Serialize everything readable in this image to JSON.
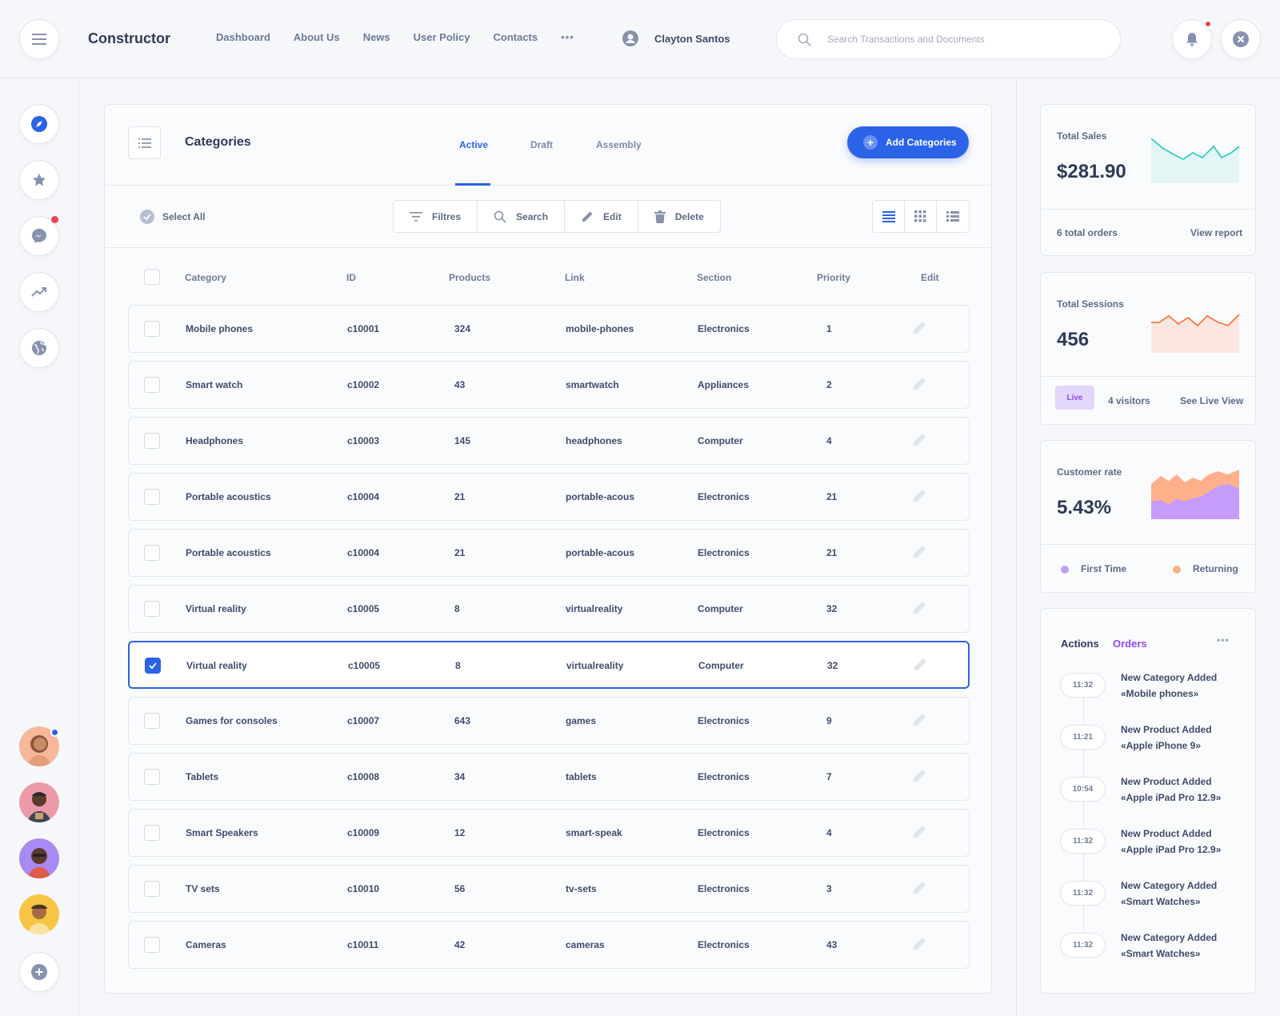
{
  "header": {
    "brand": "Constructor",
    "nav": [
      "Dashboard",
      "About Us",
      "News",
      "User Policy",
      "Contacts"
    ],
    "more": "•••",
    "user_name": "Clayton Santos",
    "search_placeholder": "Search Transactions and Documents"
  },
  "panel": {
    "title": "Categories",
    "tabs": [
      "Active",
      "Draft",
      "Assembly"
    ],
    "active_tab": "Active",
    "add_label": "Add Categories",
    "select_all": "Select All",
    "tools": [
      "Filtres",
      "Search",
      "Edit",
      "Delete"
    ],
    "columns": [
      "Category",
      "ID",
      "Products",
      "Link",
      "Section",
      "Priority",
      "Edit"
    ],
    "rows": [
      {
        "category": "Mobile phones",
        "id": "c10001",
        "products": "324",
        "link": "mobile-phones",
        "section": "Electronics",
        "priority": "1",
        "checked": false
      },
      {
        "category": "Smart watch",
        "id": "c10002",
        "products": "43",
        "link": "smartwatch",
        "section": "Appliances",
        "priority": "2",
        "checked": false
      },
      {
        "category": "Headphones",
        "id": "c10003",
        "products": "145",
        "link": "headphones",
        "section": "Computer",
        "priority": "4",
        "checked": false
      },
      {
        "category": "Portable acoustics",
        "id": "c10004",
        "products": "21",
        "link": "portable-acous",
        "section": "Electronics",
        "priority": "21",
        "checked": false
      },
      {
        "category": "Portable acoustics",
        "id": "c10004",
        "products": "21",
        "link": "portable-acous",
        "section": "Electronics",
        "priority": "21",
        "checked": false
      },
      {
        "category": "Virtual reality",
        "id": "c10005",
        "products": "8",
        "link": "virtualreality",
        "section": "Computer",
        "priority": "32",
        "checked": false
      },
      {
        "category": "Virtual reality",
        "id": "c10005",
        "products": "8",
        "link": "virtualreality",
        "section": "Computer",
        "priority": "32",
        "checked": true
      },
      {
        "category": "Games for consoles",
        "id": "c10007",
        "products": "643",
        "link": "games",
        "section": "Electronics",
        "priority": "9",
        "checked": false
      },
      {
        "category": "Tablets",
        "id": "c10008",
        "products": "34",
        "link": "tablets",
        "section": "Electronics",
        "priority": "7",
        "checked": false
      },
      {
        "category": "Smart Speakers",
        "id": "c10009",
        "products": "12",
        "link": "smart-speak",
        "section": "Electronics",
        "priority": "4",
        "checked": false
      },
      {
        "category": "TV sets",
        "id": "c10010",
        "products": "56",
        "link": "tv-sets",
        "section": "Electronics",
        "priority": "3",
        "checked": false
      },
      {
        "category": "Cameras",
        "id": "c10011",
        "products": "42",
        "link": "cameras",
        "section": "Electronics",
        "priority": "43",
        "checked": false
      }
    ]
  },
  "stats": {
    "sales": {
      "label": "Total Sales",
      "value": "$281.90",
      "orders": "6 total orders",
      "link": "View report",
      "color": "#2ccfc0"
    },
    "sessions": {
      "label": "Total Sessions",
      "value": "456",
      "badge": "Live",
      "visitors": "4 visitors",
      "link": "See Live View",
      "color": "#ff7a3d"
    },
    "customers": {
      "label": "Customer rate",
      "value": "5.43%",
      "legend_first": "First Time",
      "legend_returning": "Returning",
      "first_color": "#c59bfb",
      "returning_color": "#ffb08a"
    }
  },
  "activity": {
    "tab_actions": "Actions",
    "tab_orders": "Orders",
    "more": "•••",
    "items": [
      {
        "time": "11:32",
        "title": "New Category Added",
        "detail": "«Mobile phones»"
      },
      {
        "time": "11:21",
        "title": "New Product Added",
        "detail": "«Apple iPhone 9»"
      },
      {
        "time": "10:54",
        "title": "New Product Added",
        "detail": "«Apple iPad Pro 12.9»"
      },
      {
        "time": "11:32",
        "title": "New Product Added",
        "detail": "«Apple iPad Pro 12.9»"
      },
      {
        "time": "11:32",
        "title": "New Category Added",
        "detail": "«Smart Watches»"
      },
      {
        "time": "11:32",
        "title": "New Category Added",
        "detail": "«Smart Watches»"
      }
    ]
  },
  "colors": {
    "accent": "#2a62e8",
    "notification": "#f0415a"
  }
}
